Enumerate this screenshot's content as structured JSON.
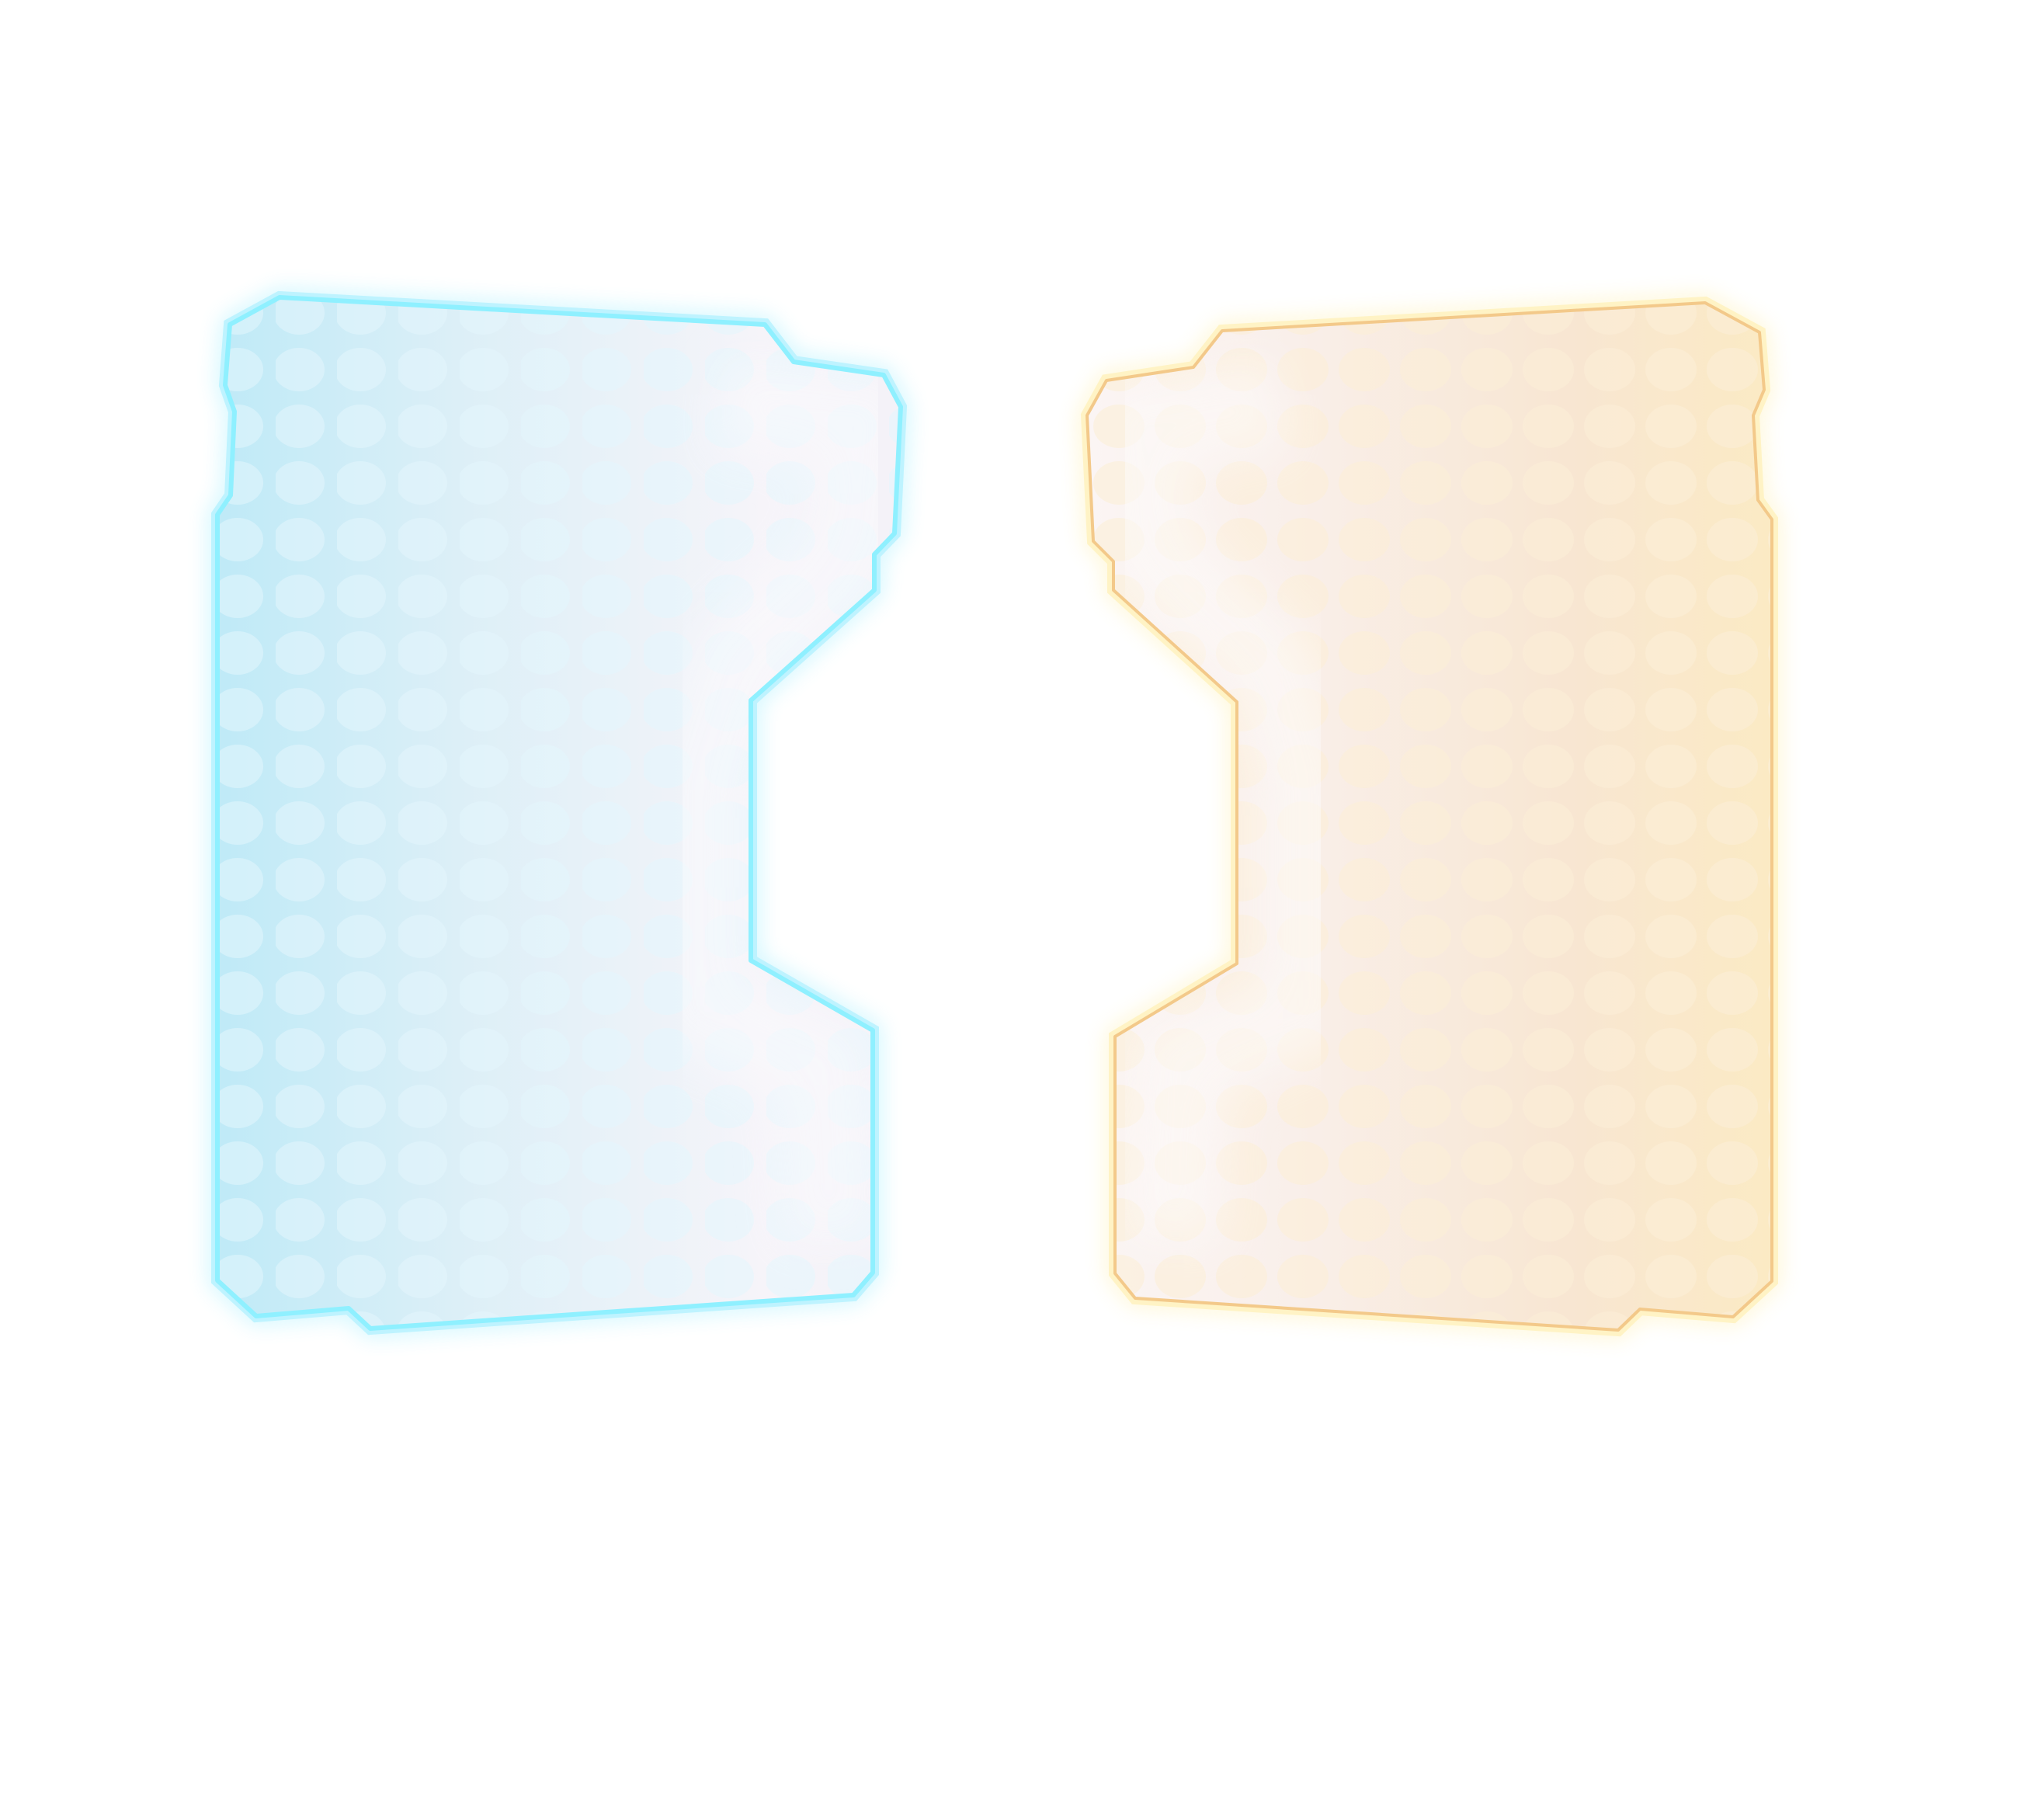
{
  "panels": [
    {
      "id": "left",
      "name": "cyan",
      "border_color": "#8FF0FF",
      "glow_color": "#6FE6FF",
      "fill_outer": "#BFEAF7",
      "fill_inner": "#F6F4F9",
      "dot_color": "#E3F6FC"
    },
    {
      "id": "right",
      "name": "amber",
      "border_color": "#F3C98A",
      "glow_color": "#FFE680",
      "fill_outer": "#FBEAC4",
      "fill_inner": "#FBF5F4",
      "dot_color": "#FCEFD7"
    }
  ]
}
